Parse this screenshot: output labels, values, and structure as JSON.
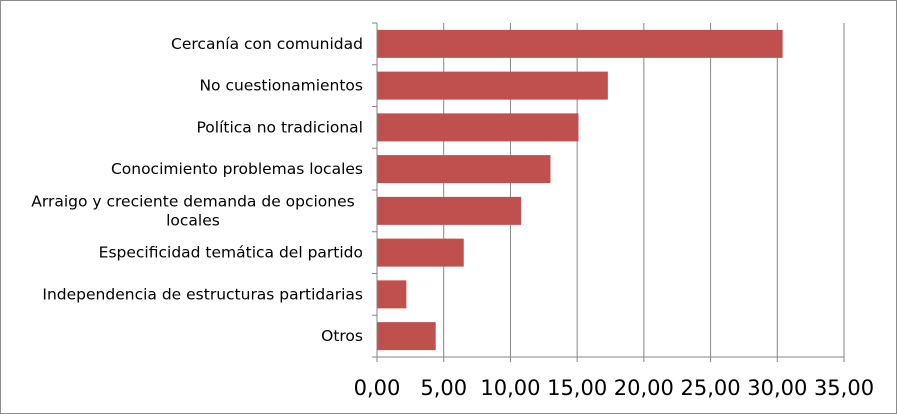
{
  "chart_data": {
    "type": "bar",
    "orientation": "horizontal",
    "categories": [
      "Cercanía con comunidad",
      "No cuestionamientos",
      "Política no tradicional",
      "Conocimiento problemas locales",
      "Arraigo y creciente demanda de opciones locales",
      "Especificidad temática del partido",
      "Independencia de estructuras partidarias",
      "Otros"
    ],
    "category_lines": [
      [
        "Cercanía con comunidad"
      ],
      [
        "No cuestionamientos"
      ],
      [
        "Política no tradicional"
      ],
      [
        "Conocimiento problemas locales"
      ],
      [
        "Arraigo y creciente demanda de opciones",
        "locales"
      ],
      [
        "Especificidad temática del partido"
      ],
      [
        "Independencia de estructuras partidarias"
      ],
      [
        "Otros"
      ]
    ],
    "values": [
      30.4,
      17.3,
      15.1,
      13.0,
      10.8,
      6.5,
      2.2,
      4.4
    ],
    "xlim": [
      0,
      35
    ],
    "x_ticks": [
      0,
      5,
      10,
      15,
      20,
      25,
      30,
      35
    ],
    "x_tick_labels": [
      "0,00",
      "5,00",
      "10,00",
      "15,00",
      "20,00",
      "25,00",
      "30,00",
      "35,00"
    ],
    "grid": "vertical",
    "legend": "none",
    "bar_color": "#c0504d",
    "grid_color": "#868686",
    "axis_color": "#868686"
  }
}
